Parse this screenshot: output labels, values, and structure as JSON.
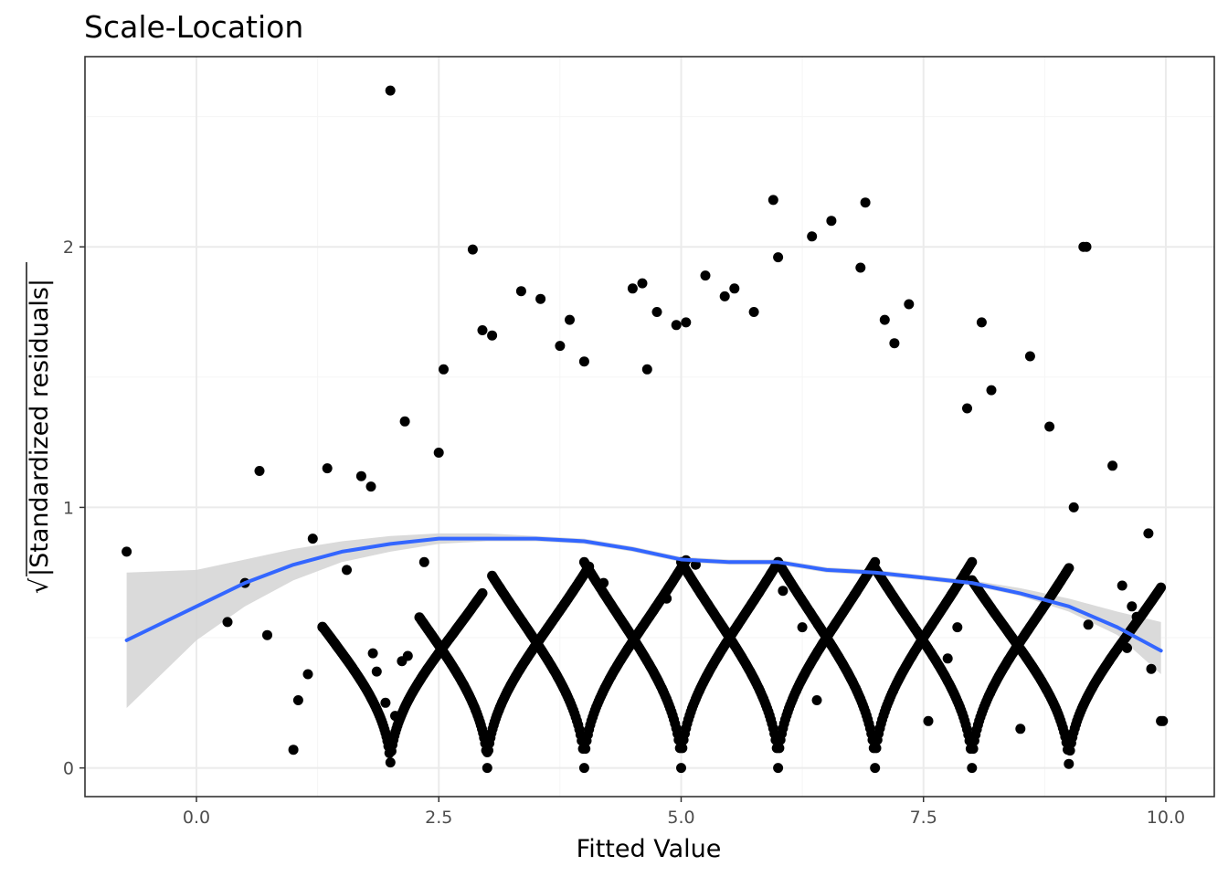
{
  "chart_data": {
    "type": "scatter",
    "title": "Scale-Location",
    "xlabel": "Fitted Value",
    "ylabel": "√|Standardized residuals|",
    "ylabel_root": "√",
    "ylabel_text": "|Standardized residuals|",
    "xlim": [
      -1.15,
      10.5
    ],
    "ylim": [
      -0.11,
      2.73
    ],
    "x_ticks": [
      0.0,
      2.5,
      5.0,
      7.5,
      10.0
    ],
    "x_tick_labels": [
      "0.0",
      "2.5",
      "5.0",
      "7.5",
      "10.0"
    ],
    "y_ticks": [
      0,
      1,
      2
    ],
    "y_tick_labels": [
      "0",
      "1",
      "2"
    ],
    "grid": true,
    "colors": {
      "points": "#000000",
      "smooth_line": "#3366ff",
      "confidence_band": "#d3d3d3",
      "grid_major": "#ebebeb",
      "grid_minor": "#f5f5f5",
      "panel_border": "#333333"
    },
    "smooth": {
      "x": [
        -0.72,
        0.0,
        0.5,
        1.0,
        1.5,
        2.0,
        2.5,
        3.0,
        3.5,
        4.0,
        4.5,
        5.0,
        5.5,
        6.0,
        6.5,
        7.0,
        7.5,
        8.0,
        8.5,
        9.0,
        9.5,
        9.95
      ],
      "y": [
        0.49,
        0.62,
        0.71,
        0.78,
        0.83,
        0.86,
        0.88,
        0.88,
        0.88,
        0.87,
        0.84,
        0.8,
        0.79,
        0.79,
        0.76,
        0.75,
        0.73,
        0.71,
        0.67,
        0.62,
        0.54,
        0.45
      ],
      "lower": [
        0.23,
        0.49,
        0.62,
        0.72,
        0.79,
        0.83,
        0.86,
        0.87,
        0.87,
        0.86,
        0.83,
        0.79,
        0.78,
        0.78,
        0.75,
        0.74,
        0.72,
        0.7,
        0.66,
        0.6,
        0.51,
        0.36
      ],
      "upper": [
        0.75,
        0.76,
        0.8,
        0.84,
        0.87,
        0.89,
        0.9,
        0.9,
        0.89,
        0.88,
        0.85,
        0.81,
        0.8,
        0.8,
        0.77,
        0.76,
        0.74,
        0.72,
        0.69,
        0.65,
        0.6,
        0.56
      ]
    },
    "curve_families": {
      "description_free": true,
      "v_centers": [
        3,
        4,
        5,
        6,
        7,
        8,
        9
      ],
      "v_params": [
        [
          0.49,
          0.0
        ],
        [
          0.54,
          0.0
        ],
        [
          0.56,
          0.0
        ],
        [
          0.56,
          0.0
        ],
        [
          0.56,
          0.0
        ],
        [
          0.56,
          0.0
        ],
        [
          0.54,
          0.0
        ]
      ],
      "bands": [
        {
          "c": 2.0,
          "a": 0.6,
          "lo": 1.3,
          "hi": 2.95
        },
        {
          "c": 3.0,
          "a": 0.64,
          "lo": 2.3,
          "hi": 4.05
        },
        {
          "c": 4.0,
          "a": 0.66,
          "lo": 3.05,
          "hi": 5.05
        },
        {
          "c": 5.0,
          "a": 0.68,
          "lo": 4.0,
          "hi": 6.0
        },
        {
          "c": 6.0,
          "a": 0.68,
          "lo": 5.0,
          "hi": 7.0
        },
        {
          "c": 7.0,
          "a": 0.68,
          "lo": 6.0,
          "hi": 8.0
        },
        {
          "c": 8.0,
          "a": 0.66,
          "lo": 7.0,
          "hi": 9.0
        },
        {
          "c": 9.0,
          "a": 0.62,
          "lo": 8.0,
          "hi": 9.95
        }
      ]
    },
    "outliers": [
      [
        -0.72,
        0.83
      ],
      [
        0.32,
        0.56
      ],
      [
        0.5,
        0.71
      ],
      [
        0.65,
        1.14
      ],
      [
        0.73,
        0.51
      ],
      [
        1.0,
        0.07
      ],
      [
        1.05,
        0.26
      ],
      [
        1.15,
        0.36
      ],
      [
        1.2,
        0.88
      ],
      [
        1.3,
        0.54
      ],
      [
        1.35,
        1.15
      ],
      [
        1.55,
        0.76
      ],
      [
        1.7,
        1.12
      ],
      [
        1.8,
        1.08
      ],
      [
        1.82,
        0.44
      ],
      [
        1.86,
        0.37
      ],
      [
        1.95,
        0.25
      ],
      [
        2.0,
        2.6
      ],
      [
        2.05,
        0.2
      ],
      [
        2.12,
        0.41
      ],
      [
        2.15,
        1.33
      ],
      [
        2.18,
        0.43
      ],
      [
        2.35,
        0.79
      ],
      [
        2.5,
        1.21
      ],
      [
        2.55,
        1.53
      ],
      [
        2.85,
        1.99
      ],
      [
        2.95,
        1.68
      ],
      [
        3.0,
        0.06
      ],
      [
        3.05,
        1.66
      ],
      [
        3.35,
        1.83
      ],
      [
        3.55,
        1.8
      ],
      [
        3.75,
        1.62
      ],
      [
        3.85,
        1.72
      ],
      [
        4.0,
        1.56
      ],
      [
        4.2,
        0.71
      ],
      [
        4.5,
        1.84
      ],
      [
        4.6,
        1.86
      ],
      [
        4.65,
        1.53
      ],
      [
        4.75,
        1.75
      ],
      [
        4.85,
        0.65
      ],
      [
        4.95,
        1.7
      ],
      [
        5.05,
        1.71
      ],
      [
        5.15,
        0.78
      ],
      [
        5.25,
        1.89
      ],
      [
        5.45,
        1.81
      ],
      [
        5.55,
        1.84
      ],
      [
        5.75,
        1.75
      ],
      [
        5.95,
        2.18
      ],
      [
        6.0,
        1.96
      ],
      [
        6.05,
        0.68
      ],
      [
        6.25,
        0.54
      ],
      [
        6.35,
        2.04
      ],
      [
        6.4,
        0.26
      ],
      [
        6.55,
        2.1
      ],
      [
        6.85,
        1.92
      ],
      [
        6.9,
        2.17
      ],
      [
        7.1,
        1.72
      ],
      [
        7.2,
        1.63
      ],
      [
        7.35,
        1.78
      ],
      [
        7.55,
        0.18
      ],
      [
        7.75,
        0.42
      ],
      [
        7.85,
        0.54
      ],
      [
        7.95,
        1.38
      ],
      [
        8.1,
        1.71
      ],
      [
        8.2,
        1.45
      ],
      [
        8.5,
        0.15
      ],
      [
        8.6,
        1.58
      ],
      [
        8.8,
        1.31
      ],
      [
        9.0,
        0.1
      ],
      [
        9.05,
        1.0
      ],
      [
        9.15,
        2.0
      ],
      [
        9.18,
        2.0
      ],
      [
        9.2,
        0.55
      ],
      [
        9.45,
        1.16
      ],
      [
        9.55,
        0.7
      ],
      [
        9.65,
        0.62
      ],
      [
        9.7,
        0.58
      ],
      [
        9.85,
        0.38
      ],
      [
        9.82,
        0.9
      ],
      [
        9.95,
        0.18
      ],
      [
        9.97,
        0.18
      ],
      [
        9.6,
        0.46
      ]
    ]
  }
}
